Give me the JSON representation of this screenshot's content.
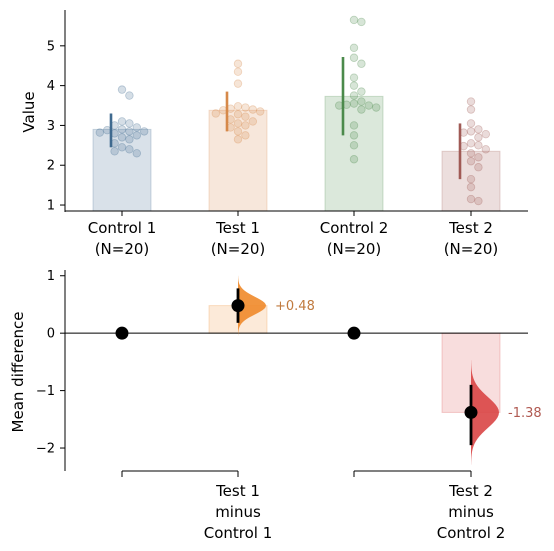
{
  "chart_data": [
    {
      "type": "bar",
      "panel": "top",
      "ylabel": "Value",
      "ylim": [
        0.85,
        5.9
      ],
      "yticks": [
        1,
        2,
        3,
        4,
        5
      ],
      "groups": [
        {
          "label_line1": "Control 1",
          "label_line2": "(N=20)",
          "mean": 2.9,
          "ci_low": 2.45,
          "ci_high": 3.3,
          "color": "#3f6a8f",
          "points": [
            3.9,
            3.75,
            3.1,
            3.05,
            3.0,
            2.95,
            2.9,
            2.88,
            2.85,
            2.85,
            2.82,
            2.8,
            2.75,
            2.7,
            2.65,
            2.55,
            2.45,
            2.4,
            2.35,
            2.3
          ]
        },
        {
          "label_line1": "Test 1",
          "label_line2": "(N=20)",
          "mean": 3.38,
          "ci_low": 2.85,
          "ci_high": 3.85,
          "color": "#d6894a",
          "points": [
            4.55,
            4.35,
            4.05,
            3.48,
            3.45,
            3.42,
            3.4,
            3.38,
            3.35,
            3.3,
            3.28,
            3.22,
            3.15,
            3.1,
            3.05,
            3.0,
            2.95,
            2.85,
            2.75,
            2.65
          ]
        },
        {
          "label_line1": "Control 2",
          "label_line2": "(N=20)",
          "mean": 3.73,
          "ci_low": 2.75,
          "ci_high": 4.72,
          "color": "#4b8a4b",
          "points": [
            5.65,
            5.6,
            4.95,
            4.7,
            4.55,
            4.2,
            4.0,
            3.85,
            3.75,
            3.6,
            3.55,
            3.52,
            3.5,
            3.5,
            3.45,
            3.4,
            3.0,
            2.75,
            2.5,
            2.15
          ]
        },
        {
          "label_line1": "Test 2",
          "label_line2": "(N=20)",
          "mean": 2.35,
          "ci_low": 1.65,
          "ci_high": 3.05,
          "color": "#a05a55",
          "points": [
            3.6,
            3.4,
            3.05,
            2.9,
            2.85,
            2.82,
            2.78,
            2.7,
            2.55,
            2.5,
            2.48,
            2.4,
            2.3,
            2.2,
            2.1,
            1.95,
            1.65,
            1.45,
            1.15,
            1.1
          ]
        }
      ]
    },
    {
      "type": "scatter",
      "panel": "bottom",
      "ylabel": "Mean difference",
      "ylim": [
        -2.4,
        1.1
      ],
      "yticks": [
        -2,
        -1,
        0,
        1
      ],
      "zero_line": true,
      "differences": [
        {
          "label_line1": "Test 1",
          "label_line2": "minus",
          "label_line3": "Control 1",
          "value": 0.48,
          "value_label": "+0.48",
          "ci_low": 0.18,
          "ci_high": 0.78,
          "color": "#ef8a2a"
        },
        {
          "label_line1": "Test 2",
          "label_line2": "minus",
          "label_line3": "Control 2",
          "value": -1.38,
          "value_label": "-1.38",
          "ci_low": -1.95,
          "ci_high": -0.9,
          "color": "#d94545"
        }
      ]
    }
  ]
}
